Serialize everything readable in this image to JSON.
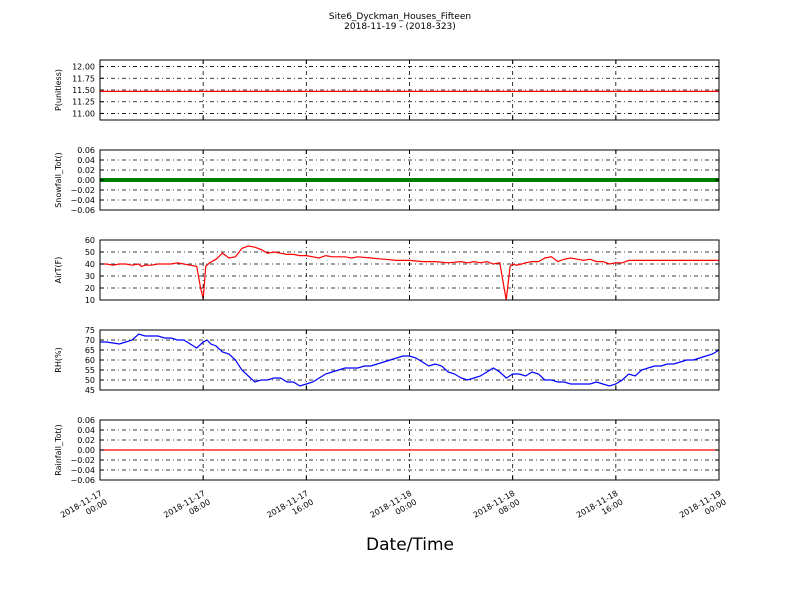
{
  "figure": {
    "title_line1": "Site6_Dyckman_Houses_Fifteen",
    "title_line2": "2018-11-19 - (2018-323)",
    "xlabel": "Date/Time"
  },
  "x_ticks": [
    [
      "2018-11-17",
      "00:00"
    ],
    [
      "2018-11-17",
      "08:00"
    ],
    [
      "2018-11-17",
      "16:00"
    ],
    [
      "2018-11-18",
      "00:00"
    ],
    [
      "2018-11-18",
      "08:00"
    ],
    [
      "2018-11-18",
      "16:00"
    ],
    [
      "2018-11-19",
      "00:00"
    ]
  ],
  "chart_data": [
    {
      "type": "line",
      "ylabel": "P(unitless)",
      "ylim": [
        10.86,
        12.14
      ],
      "yticks": [
        "11.00",
        "11.25",
        "11.50",
        "11.75",
        "12.00"
      ],
      "color": "#ff0000",
      "grid": true,
      "series": [
        {
          "x": [
            0,
            48
          ],
          "y": [
            11.47,
            11.47
          ]
        }
      ]
    },
    {
      "type": "line",
      "ylabel": "Snowfall_Tot()",
      "ylim": [
        -0.06,
        0.06
      ],
      "yticks": [
        "−0.06",
        "−0.04",
        "−0.02",
        "0.00",
        "0.02",
        "0.04",
        "0.06"
      ],
      "color": "#008000",
      "grid": true,
      "series": [
        {
          "x": [
            0,
            48
          ],
          "y": [
            0,
            0
          ]
        }
      ]
    },
    {
      "type": "line",
      "ylabel": "AirT(F)",
      "ylim": [
        10,
        60
      ],
      "yticks": [
        "10",
        "20",
        "30",
        "40",
        "50",
        "60"
      ],
      "color": "#ff0000",
      "grid": true,
      "series": [
        {
          "x": [
            0,
            0.5,
            1,
            1.5,
            2,
            2.5,
            3,
            3.2,
            3.5,
            4,
            4.5,
            5,
            5.5,
            6,
            6.5,
            7,
            7.5,
            7.8,
            8,
            8.2,
            8.5,
            9,
            9.5,
            10,
            10.5,
            11,
            11.5,
            12,
            12.5,
            13,
            13.5,
            14,
            14.5,
            15,
            15.5,
            16,
            16.5,
            17,
            17.5,
            18,
            18.5,
            19,
            19.5,
            20,
            21,
            22,
            23,
            24,
            25,
            26,
            27,
            28,
            28.5,
            29,
            29.5,
            30,
            30.5,
            31,
            31.5,
            31.8,
            32,
            32.3,
            32.7,
            33,
            33.5,
            34,
            34.5,
            35,
            35.5,
            36,
            36.5,
            37,
            37.5,
            38,
            38.5,
            39,
            39.5,
            40,
            40.5,
            41,
            42,
            43,
            44,
            45,
            46,
            47,
            48
          ],
          "y": [
            40,
            40,
            39,
            40,
            40,
            39,
            40,
            38,
            39,
            39,
            40,
            40,
            40,
            41,
            40,
            39,
            38,
            20,
            11,
            38,
            41,
            44,
            49,
            45,
            46,
            53,
            55,
            54,
            52,
            49,
            50,
            49,
            48,
            48,
            47,
            47,
            46,
            45,
            47,
            46,
            46,
            46,
            45,
            46,
            45,
            44,
            43,
            43,
            42,
            42,
            41,
            42,
            41,
            42,
            41,
            42,
            40,
            41,
            10,
            38,
            40,
            39,
            40,
            41,
            42,
            42,
            45,
            46,
            42,
            44,
            45,
            44,
            43,
            44,
            42,
            42,
            40,
            41,
            41,
            43,
            43,
            43,
            43,
            43,
            43,
            43,
            43
          ]
        }
      ]
    },
    {
      "type": "line",
      "ylabel": "RH(%)",
      "ylim": [
        45,
        75
      ],
      "yticks": [
        "45",
        "50",
        "55",
        "60",
        "65",
        "70",
        "75"
      ],
      "color": "#0000ff",
      "grid": true,
      "series": [
        {
          "x": [
            0,
            0.5,
            1,
            1.5,
            2,
            2.5,
            3,
            3.5,
            4,
            4.5,
            5,
            5.5,
            6,
            6.5,
            7,
            7.5,
            8,
            8.3,
            8.6,
            9,
            9.5,
            10,
            10.5,
            11,
            11.5,
            12,
            12.5,
            13,
            13.5,
            14,
            14.5,
            15,
            15.5,
            16,
            16.5,
            17,
            17.5,
            18,
            18.5,
            19,
            19.5,
            20,
            20.5,
            21,
            21.5,
            22,
            22.5,
            23,
            23.5,
            24,
            24.5,
            25,
            25.5,
            26,
            26.5,
            27,
            27.5,
            28,
            28.5,
            29,
            29.5,
            30,
            30.5,
            31,
            31.5,
            32,
            32.5,
            33,
            33.5,
            34,
            34.5,
            35,
            35.5,
            36,
            36.5,
            37,
            37.5,
            38,
            38.5,
            39,
            39.5,
            40,
            40.5,
            41,
            41.5,
            42,
            42.5,
            43,
            43.5,
            44,
            44.5,
            45,
            45.5,
            46,
            46.5,
            47,
            47.5,
            48
          ],
          "y": [
            69,
            69,
            68.5,
            68,
            69,
            70,
            73,
            72,
            72,
            72,
            71,
            71,
            70,
            70,
            68,
            66,
            69,
            70,
            68,
            67,
            64,
            63,
            60,
            55,
            52,
            49,
            50,
            50,
            51,
            51,
            49,
            49,
            47,
            48,
            49,
            51,
            53,
            54,
            55,
            56,
            56,
            56,
            57,
            57,
            58,
            59,
            60,
            61,
            62,
            62,
            61,
            59,
            57,
            58,
            57,
            54,
            53,
            51,
            50,
            51,
            52,
            54,
            56,
            54,
            51,
            53,
            53,
            52,
            54,
            53,
            50,
            50,
            49,
            49,
            48,
            48,
            48,
            48,
            49,
            48,
            47,
            48,
            50,
            53,
            52,
            55,
            56,
            57,
            57,
            58,
            58,
            59,
            60,
            60,
            61,
            62,
            63,
            65
          ]
        }
      ]
    },
    {
      "type": "line",
      "ylabel": "Rainfall_Tot()",
      "ylim": [
        -0.06,
        0.06
      ],
      "yticks": [
        "−0.06",
        "−0.04",
        "−0.02",
        "0.00",
        "0.02",
        "0.04",
        "0.06"
      ],
      "color": "#ff0000",
      "grid": true,
      "series": [
        {
          "x": [
            0,
            48
          ],
          "y": [
            0,
            0
          ]
        }
      ]
    }
  ]
}
